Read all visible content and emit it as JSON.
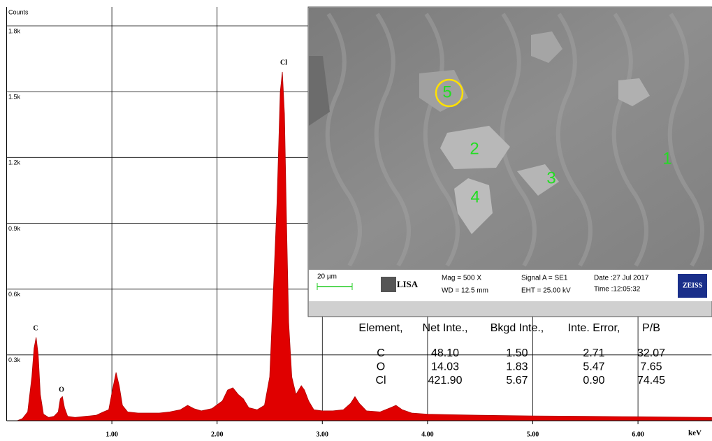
{
  "chart_data": {
    "type": "area",
    "y_label": "Counts",
    "x_label": "keV",
    "annotations": [
      "C",
      "O",
      "Cl"
    ],
    "color": "#e00000",
    "xlim": [
      0,
      6.7
    ],
    "ylim": [
      0,
      1886
    ],
    "xticks": [
      {
        "value": 1,
        "label": "1.00"
      },
      {
        "value": 2,
        "label": "2.00"
      },
      {
        "value": 3,
        "label": "3.00"
      },
      {
        "value": 4,
        "label": "4.00"
      },
      {
        "value": 5,
        "label": "5.00"
      },
      {
        "value": 6,
        "label": "6.00"
      }
    ],
    "yticks": [
      {
        "value": 300,
        "label": "0.3k"
      },
      {
        "value": 600,
        "label": "0.6k"
      },
      {
        "value": 900,
        "label": "0.9k"
      },
      {
        "value": 1200,
        "label": "1.2k"
      },
      {
        "value": 1500,
        "label": "1.5k"
      },
      {
        "value": 1800,
        "label": "1.8k"
      }
    ],
    "grid": true,
    "x": [
      0.1,
      0.15,
      0.2,
      0.24,
      0.26,
      0.28,
      0.3,
      0.32,
      0.35,
      0.4,
      0.45,
      0.49,
      0.51,
      0.53,
      0.55,
      0.58,
      0.65,
      0.75,
      0.85,
      0.92,
      0.97,
      1.01,
      1.04,
      1.07,
      1.1,
      1.15,
      1.25,
      1.35,
      1.45,
      1.55,
      1.65,
      1.72,
      1.78,
      1.85,
      1.95,
      2.05,
      2.1,
      2.15,
      2.2,
      2.25,
      2.3,
      2.38,
      2.45,
      2.5,
      2.54,
      2.57,
      2.6,
      2.62,
      2.64,
      2.66,
      2.68,
      2.71,
      2.75,
      2.8,
      2.83,
      2.87,
      2.92,
      3.0,
      3.1,
      3.2,
      3.27,
      3.31,
      3.35,
      3.42,
      3.55,
      3.65,
      3.7,
      3.76,
      3.85,
      4.0,
      4.5,
      5.0,
      5.5,
      6.0,
      6.5,
      6.7
    ],
    "y": [
      0,
      10,
      40,
      200,
      330,
      380,
      300,
      120,
      30,
      15,
      20,
      40,
      100,
      110,
      60,
      20,
      15,
      20,
      25,
      40,
      50,
      150,
      220,
      160,
      70,
      40,
      35,
      35,
      35,
      40,
      50,
      70,
      55,
      45,
      55,
      90,
      140,
      150,
      120,
      100,
      60,
      50,
      70,
      200,
      650,
      1000,
      1500,
      1590,
      1400,
      900,
      450,
      200,
      120,
      160,
      140,
      90,
      50,
      45,
      45,
      50,
      80,
      110,
      80,
      45,
      40,
      60,
      70,
      50,
      35,
      30,
      25,
      22,
      20,
      18,
      16,
      15
    ]
  },
  "sem_image": {
    "markers": [
      "1",
      "2",
      "3",
      "4",
      "5"
    ],
    "scale_bar": "20 µm",
    "logo": "LISA",
    "mag": "Mag =   500 X",
    "wd": "WD = 12.5 mm",
    "signal": "Signal A = SE1",
    "eht": "EHT = 25.00 kV",
    "date": "Date :27 Jul 2017",
    "time": "Time :12:05:32",
    "brand": "ZEISS"
  },
  "results_table": {
    "columns": [
      "Element,",
      "Net Inte.,",
      "Bkgd Inte.,",
      "Inte. Error,",
      "P/B"
    ],
    "rows": [
      [
        "C",
        "48.10",
        "1.50",
        "2.71",
        "32.07"
      ],
      [
        "O",
        "14.03",
        "1.83",
        "5.47",
        "7.65"
      ],
      [
        "Cl",
        "421.90",
        "5.67",
        "0.90",
        "74.45"
      ]
    ]
  }
}
